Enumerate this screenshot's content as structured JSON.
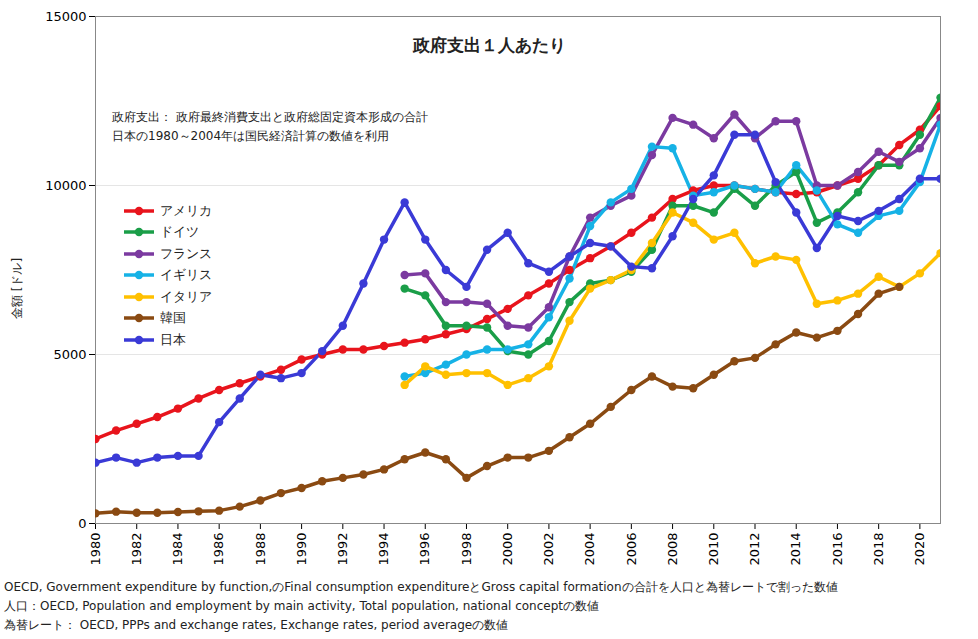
{
  "chart_data": {
    "type": "line",
    "title": "政府支出１人あたり",
    "annotations": [
      "政府支出： 政府最終消費支出と政府総固定資本形成の合計",
      "日本の1980～2004年は国民経済計算の数値を利用"
    ],
    "ylabel": "金額 [ドル]",
    "caption": [
      "OECD, Government expenditure by function,のFinal consumption expenditureとGross capital formationの合計を人口と為替レートで割った数値",
      "人口：OECD, Population and employment by main activity, Total population, national conceptの数値",
      "為替レート： OECD, PPPs and exchange rates, Exchange rates, period averageの数値"
    ],
    "x": [
      1980,
      1981,
      1982,
      1983,
      1984,
      1985,
      1986,
      1987,
      1988,
      1989,
      1990,
      1991,
      1992,
      1993,
      1994,
      1995,
      1996,
      1997,
      1998,
      1999,
      2000,
      2001,
      2002,
      2003,
      2004,
      2005,
      2006,
      2007,
      2008,
      2009,
      2010,
      2011,
      2012,
      2013,
      2014,
      2015,
      2016,
      2017,
      2018,
      2019,
      2020,
      2021
    ],
    "xlim": [
      1980,
      2021
    ],
    "xticks": [
      1980,
      1982,
      1984,
      1986,
      1988,
      1990,
      1992,
      1994,
      1996,
      1998,
      2000,
      2002,
      2004,
      2006,
      2008,
      2010,
      2012,
      2014,
      2016,
      2018,
      2020
    ],
    "ylim": [
      0,
      15000
    ],
    "yticks": [
      0,
      5000,
      10000,
      15000
    ],
    "grid": true,
    "legend": "left",
    "marker": "circle",
    "line_style": "solid",
    "series": [
      {
        "name": "アメリカ",
        "color": "#e8141c",
        "values": [
          2500,
          2750,
          2950,
          3150,
          3400,
          3700,
          3950,
          4150,
          4350,
          4550,
          4850,
          5000,
          5150,
          5150,
          5250,
          5350,
          5450,
          5600,
          5750,
          6050,
          6350,
          6750,
          7100,
          7500,
          7850,
          8200,
          8600,
          9050,
          9600,
          9850,
          10000,
          10000,
          9900,
          9800,
          9750,
          9800,
          10000,
          10200,
          10600,
          11200,
          11650,
          12350
        ]
      },
      {
        "name": "ドイツ",
        "color": "#1a9e48",
        "values": [
          null,
          null,
          null,
          null,
          null,
          null,
          null,
          null,
          null,
          null,
          null,
          null,
          null,
          null,
          null,
          6950,
          6750,
          5850,
          5850,
          5800,
          5100,
          5000,
          5400,
          6550,
          7100,
          7200,
          7450,
          8100,
          9400,
          9400,
          9200,
          9900,
          9400,
          10000,
          10400,
          8900,
          9200,
          9800,
          10600,
          10600,
          11500,
          12600
        ]
      },
      {
        "name": "フランス",
        "color": "#7b3aa0",
        "values": [
          null,
          null,
          null,
          null,
          null,
          null,
          null,
          null,
          null,
          null,
          null,
          null,
          null,
          null,
          null,
          7350,
          7400,
          6550,
          6550,
          6500,
          5850,
          5800,
          6400,
          7900,
          9050,
          9400,
          9700,
          10900,
          12000,
          11800,
          11400,
          12100,
          11400,
          11900,
          11900,
          10000,
          10000,
          10400,
          11000,
          10700,
          11100,
          12000
        ]
      },
      {
        "name": "イギリス",
        "color": "#16b2e6",
        "values": [
          null,
          null,
          null,
          null,
          null,
          null,
          null,
          null,
          null,
          null,
          null,
          null,
          null,
          null,
          null,
          4350,
          4450,
          4700,
          5000,
          5150,
          5150,
          5300,
          6100,
          7250,
          8800,
          9500,
          9900,
          11150,
          11100,
          9700,
          9800,
          10000,
          9900,
          9800,
          10600,
          9850,
          8850,
          8600,
          9100,
          9250,
          10100,
          11800
        ]
      },
      {
        "name": "イタリア",
        "color": "#ffc000",
        "values": [
          null,
          null,
          null,
          null,
          null,
          null,
          null,
          null,
          null,
          null,
          null,
          null,
          null,
          null,
          null,
          4100,
          4650,
          4400,
          4450,
          4450,
          4100,
          4300,
          4650,
          6000,
          6950,
          7200,
          7500,
          8300,
          9200,
          8900,
          8400,
          8600,
          7700,
          7900,
          7800,
          6500,
          6600,
          6800,
          7300,
          7000,
          7400,
          8000
        ]
      },
      {
        "name": "韓国",
        "color": "#8a4a12",
        "values": [
          300,
          350,
          320,
          320,
          340,
          360,
          380,
          500,
          680,
          900,
          1050,
          1250,
          1350,
          1450,
          1600,
          1900,
          2100,
          1900,
          1350,
          1700,
          1950,
          1950,
          2150,
          2550,
          2950,
          3450,
          3950,
          4350,
          4050,
          4000,
          4400,
          4800,
          4900,
          5300,
          5650,
          5500,
          5700,
          6200,
          6800,
          7000,
          null,
          null
        ]
      },
      {
        "name": "日本",
        "color": "#3a3ad6",
        "values": [
          1800,
          1950,
          1800,
          1950,
          2000,
          2000,
          3000,
          3700,
          4400,
          4300,
          4450,
          5100,
          5850,
          7100,
          8400,
          9500,
          8400,
          7500,
          7000,
          8100,
          8600,
          7700,
          7450,
          7900,
          8300,
          8200,
          7600,
          7550,
          8500,
          9600,
          10300,
          11500,
          11500,
          10100,
          9200,
          8150,
          9100,
          8950,
          9250,
          9600,
          10200,
          10200
        ]
      }
    ]
  }
}
